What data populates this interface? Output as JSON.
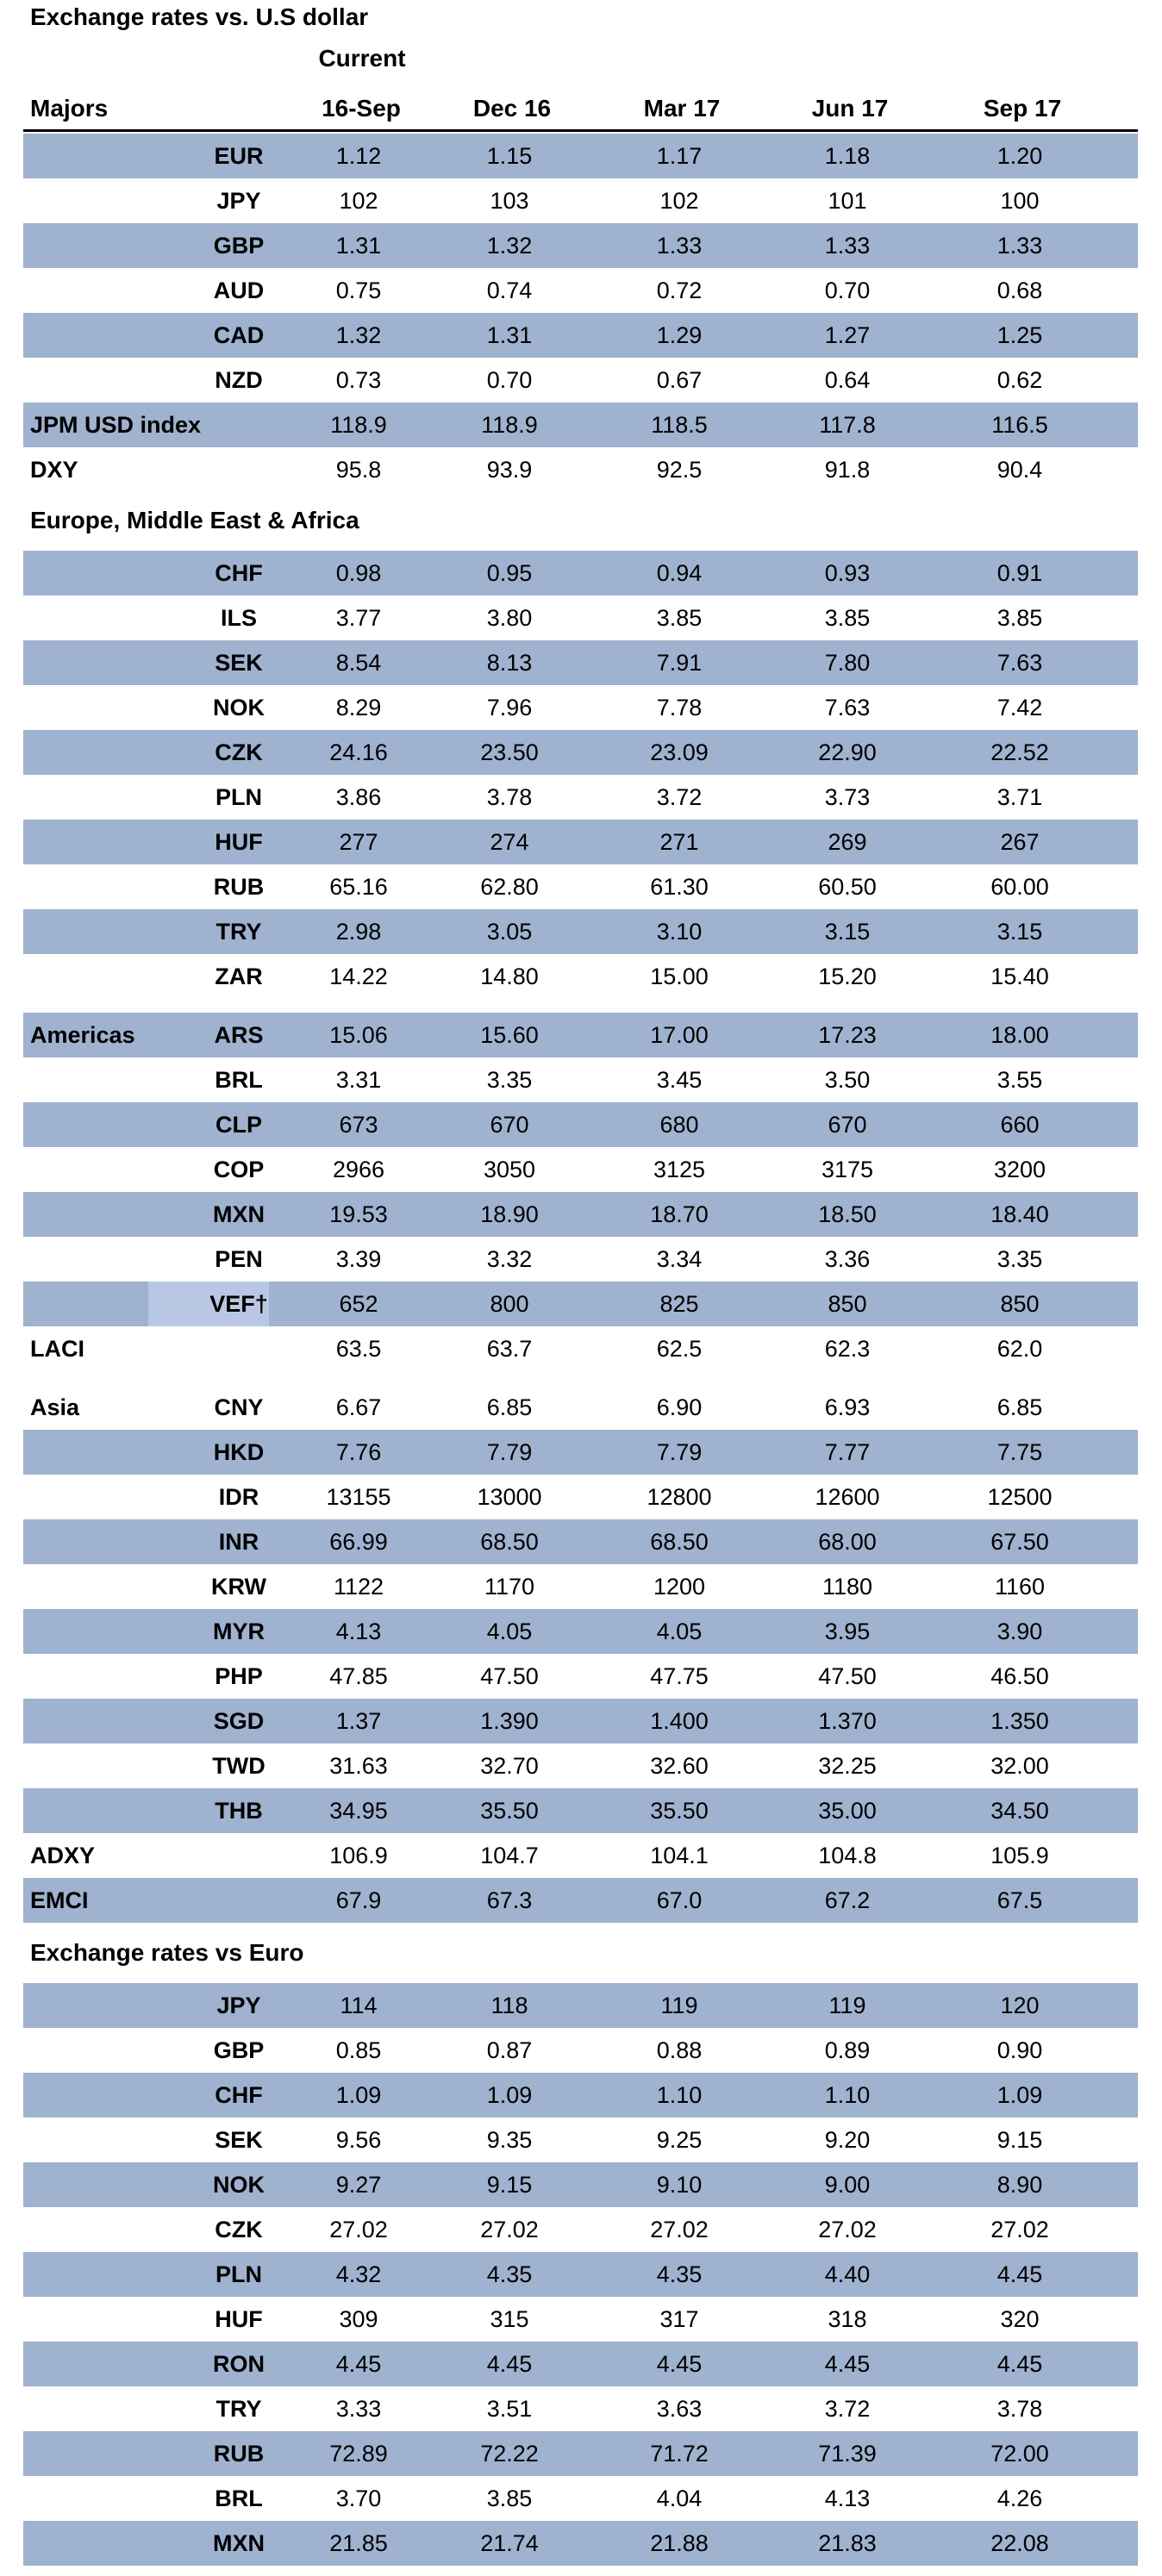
{
  "title": "Exchange rates vs. U.S dollar",
  "columns": {
    "current_label": "Current",
    "group_label": "Majors",
    "dates": [
      "16-Sep",
      "Dec 16",
      "Mar 17",
      "Jun 17",
      "Sep 17"
    ]
  },
  "sections": [
    {
      "heading": "",
      "rows": [
        {
          "label": "",
          "ccy": "EUR",
          "values": [
            "1.12",
            "1.15",
            "1.17",
            "1.18",
            "1.20"
          ],
          "shaded": true
        },
        {
          "label": "",
          "ccy": "JPY",
          "values": [
            "102",
            "103",
            "102",
            "101",
            "100"
          ],
          "shaded": false
        },
        {
          "label": "",
          "ccy": "GBP",
          "values": [
            "1.31",
            "1.32",
            "1.33",
            "1.33",
            "1.33"
          ],
          "shaded": true
        },
        {
          "label": "",
          "ccy": "AUD",
          "values": [
            "0.75",
            "0.74",
            "0.72",
            "0.70",
            "0.68"
          ],
          "shaded": false
        },
        {
          "label": "",
          "ccy": "CAD",
          "values": [
            "1.32",
            "1.31",
            "1.29",
            "1.27",
            "1.25"
          ],
          "shaded": true
        },
        {
          "label": "",
          "ccy": "NZD",
          "values": [
            "0.73",
            "0.70",
            "0.67",
            "0.64",
            "0.62"
          ],
          "shaded": false
        },
        {
          "label": "JPM  USD index",
          "ccy": "",
          "values": [
            "118.9",
            "118.9",
            "118.5",
            "117.8",
            "116.5"
          ],
          "shaded": true
        },
        {
          "label": "DXY",
          "ccy": "",
          "values": [
            "95.8",
            "93.9",
            "92.5",
            "91.8",
            "90.4"
          ],
          "shaded": false
        }
      ]
    },
    {
      "heading": "Europe, Middle East & Africa",
      "rows": [
        {
          "label": "",
          "ccy": "CHF",
          "values": [
            "0.98",
            "0.95",
            "0.94",
            "0.93",
            "0.91"
          ],
          "shaded": true
        },
        {
          "label": "",
          "ccy": "ILS",
          "values": [
            "3.77",
            "3.80",
            "3.85",
            "3.85",
            "3.85"
          ],
          "shaded": false
        },
        {
          "label": "",
          "ccy": "SEK",
          "values": [
            "8.54",
            "8.13",
            "7.91",
            "7.80",
            "7.63"
          ],
          "shaded": true
        },
        {
          "label": "",
          "ccy": "NOK",
          "values": [
            "8.29",
            "7.96",
            "7.78",
            "7.63",
            "7.42"
          ],
          "shaded": false
        },
        {
          "label": "",
          "ccy": "CZK",
          "values": [
            "24.16",
            "23.50",
            "23.09",
            "22.90",
            "22.52"
          ],
          "shaded": true
        },
        {
          "label": "",
          "ccy": "PLN",
          "values": [
            "3.86",
            "3.78",
            "3.72",
            "3.73",
            "3.71"
          ],
          "shaded": false
        },
        {
          "label": "",
          "ccy": "HUF",
          "values": [
            "277",
            "274",
            "271",
            "269",
            "267"
          ],
          "shaded": true
        },
        {
          "label": "",
          "ccy": "RUB",
          "values": [
            "65.16",
            "62.80",
            "61.30",
            "60.50",
            "60.00"
          ],
          "shaded": false
        },
        {
          "label": "",
          "ccy": "TRY",
          "values": [
            "2.98",
            "3.05",
            "3.10",
            "3.15",
            "3.15"
          ],
          "shaded": true
        },
        {
          "label": "",
          "ccy": "ZAR",
          "values": [
            "14.22",
            "14.80",
            "15.00",
            "15.20",
            "15.40"
          ],
          "shaded": false
        }
      ]
    },
    {
      "heading": "",
      "rows": [
        {
          "label": "Americas",
          "ccy": "ARS",
          "values": [
            "15.06",
            "15.60",
            "17.00",
            "17.23",
            "18.00"
          ],
          "shaded": true
        },
        {
          "label": "",
          "ccy": "BRL",
          "values": [
            "3.31",
            "3.35",
            "3.45",
            "3.50",
            "3.55"
          ],
          "shaded": false
        },
        {
          "label": "",
          "ccy": "CLP",
          "values": [
            "673",
            "670",
            "680",
            "670",
            "660"
          ],
          "shaded": true
        },
        {
          "label": "",
          "ccy": "COP",
          "values": [
            "2966",
            "3050",
            "3125",
            "3175",
            "3200"
          ],
          "shaded": false
        },
        {
          "label": "",
          "ccy": "MXN",
          "values": [
            "19.53",
            "18.90",
            "18.70",
            "18.50",
            "18.40"
          ],
          "shaded": true
        },
        {
          "label": "",
          "ccy": "PEN",
          "values": [
            "3.39",
            "3.32",
            "3.34",
            "3.36",
            "3.35"
          ],
          "shaded": false
        },
        {
          "label": "",
          "ccy": "VEF†",
          "values": [
            "652",
            "800",
            "825",
            "850",
            "850"
          ],
          "shaded": true
        },
        {
          "label": "LACI",
          "ccy": "",
          "values": [
            "63.5",
            "63.7",
            "62.5",
            "62.3",
            "62.0"
          ],
          "shaded": false
        }
      ]
    },
    {
      "heading": "",
      "rows": [
        {
          "label": "Asia",
          "ccy": "CNY",
          "values": [
            "6.67",
            "6.85",
            "6.90",
            "6.93",
            "6.85"
          ],
          "shaded": false
        },
        {
          "label": "",
          "ccy": "HKD",
          "values": [
            "7.76",
            "7.79",
            "7.79",
            "7.77",
            "7.75"
          ],
          "shaded": true
        },
        {
          "label": "",
          "ccy": "IDR",
          "values": [
            "13155",
            "13000",
            "12800",
            "12600",
            "12500"
          ],
          "shaded": false
        },
        {
          "label": "",
          "ccy": "INR",
          "values": [
            "66.99",
            "68.50",
            "68.50",
            "68.00",
            "67.50"
          ],
          "shaded": true
        },
        {
          "label": "",
          "ccy": "KRW",
          "values": [
            "1122",
            "1170",
            "1200",
            "1180",
            "1160"
          ],
          "shaded": false
        },
        {
          "label": "",
          "ccy": "MYR",
          "values": [
            "4.13",
            "4.05",
            "4.05",
            "3.95",
            "3.90"
          ],
          "shaded": true
        },
        {
          "label": "",
          "ccy": "PHP",
          "values": [
            "47.85",
            "47.50",
            "47.75",
            "47.50",
            "46.50"
          ],
          "shaded": false
        },
        {
          "label": "",
          "ccy": "SGD",
          "values": [
            "1.37",
            "1.390",
            "1.400",
            "1.370",
            "1.350"
          ],
          "shaded": true
        },
        {
          "label": "",
          "ccy": "TWD",
          "values": [
            "31.63",
            "32.70",
            "32.60",
            "32.25",
            "32.00"
          ],
          "shaded": false
        },
        {
          "label": "",
          "ccy": "THB",
          "values": [
            "34.95",
            "35.50",
            "35.50",
            "35.00",
            "34.50"
          ],
          "shaded": true
        },
        {
          "label": "ADXY",
          "ccy": "",
          "values": [
            "106.9",
            "104.7",
            "104.1",
            "104.8",
            "105.9"
          ],
          "shaded": false
        },
        {
          "label": "EMCI",
          "ccy": "",
          "values": [
            "67.9",
            "67.3",
            "67.0",
            "67.2",
            "67.5"
          ],
          "shaded": true
        }
      ]
    },
    {
      "heading": "Exchange rates vs Euro",
      "rows": [
        {
          "label": "",
          "ccy": "JPY",
          "values": [
            "114",
            "118",
            "119",
            "119",
            "120"
          ],
          "shaded": true
        },
        {
          "label": "",
          "ccy": "GBP",
          "values": [
            "0.85",
            "0.87",
            "0.88",
            "0.89",
            "0.90"
          ],
          "shaded": false
        },
        {
          "label": "",
          "ccy": "CHF",
          "values": [
            "1.09",
            "1.09",
            "1.10",
            "1.10",
            "1.09"
          ],
          "shaded": true
        },
        {
          "label": "",
          "ccy": "SEK",
          "values": [
            "9.56",
            "9.35",
            "9.25",
            "9.20",
            "9.15"
          ],
          "shaded": false
        },
        {
          "label": "",
          "ccy": "NOK",
          "values": [
            "9.27",
            "9.15",
            "9.10",
            "9.00",
            "8.90"
          ],
          "shaded": true
        },
        {
          "label": "",
          "ccy": "CZK",
          "values": [
            "27.02",
            "27.02",
            "27.02",
            "27.02",
            "27.02"
          ],
          "shaded": false
        },
        {
          "label": "",
          "ccy": "PLN",
          "values": [
            "4.32",
            "4.35",
            "4.35",
            "4.40",
            "4.45"
          ],
          "shaded": true
        },
        {
          "label": "",
          "ccy": "HUF",
          "values": [
            "309",
            "315",
            "317",
            "318",
            "320"
          ],
          "shaded": false
        },
        {
          "label": "",
          "ccy": "RON",
          "values": [
            "4.45",
            "4.45",
            "4.45",
            "4.45",
            "4.45"
          ],
          "shaded": true
        },
        {
          "label": "",
          "ccy": "TRY",
          "values": [
            "3.33",
            "3.51",
            "3.63",
            "3.72",
            "3.78"
          ],
          "shaded": false
        },
        {
          "label": "",
          "ccy": "RUB",
          "values": [
            "72.89",
            "72.22",
            "71.72",
            "71.39",
            "72.00"
          ],
          "shaded": true
        },
        {
          "label": "",
          "ccy": "BRL",
          "values": [
            "3.70",
            "3.85",
            "4.04",
            "4.13",
            "4.26"
          ],
          "shaded": false
        },
        {
          "label": "",
          "ccy": "MXN",
          "values": [
            "21.85",
            "21.74",
            "21.88",
            "21.83",
            "22.08"
          ],
          "shaded": true
        }
      ]
    }
  ]
}
